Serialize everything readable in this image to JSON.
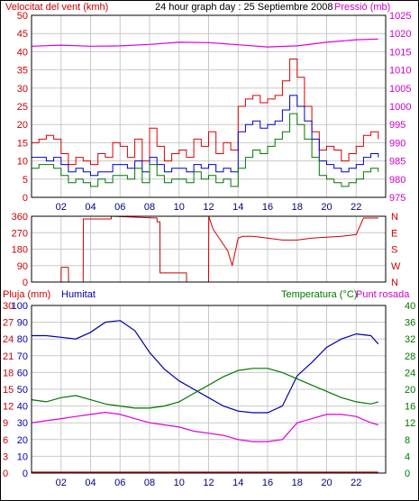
{
  "header": {
    "wind_label": "Velocitat del vent (kmh)",
    "title": "24 hour graph day : 25 Septiembre 2008",
    "pressure_label": "Pressió (mb)"
  },
  "x_ticks": [
    "02",
    "04",
    "06",
    "08",
    "10",
    "12",
    "14",
    "16",
    "18",
    "20",
    "22"
  ],
  "colors": {
    "wind_red": "#dd0000",
    "wind_blue": "#0000cc",
    "wind_green": "#007700",
    "pressure": "#dd00dd",
    "direction": "#cc0000",
    "humidity": "#0000aa",
    "temperature": "#007700",
    "dewpoint": "#dd00dd",
    "rain": "#cc0000",
    "grid": "#c8c8c8",
    "frame": "#000000"
  },
  "panel3": {
    "rain_label": "Pluja (mm)",
    "humidity_label": "Humitat",
    "temp_label": "Temperatura (°C)",
    "dew_label": "Punt rosada"
  },
  "chart_data": [
    {
      "type": "line",
      "title": "24 hour graph day : 25 Septiembre 2008",
      "x_unit": "hour",
      "x_ticks": [
        "02",
        "04",
        "06",
        "08",
        "10",
        "12",
        "14",
        "16",
        "18",
        "20",
        "22"
      ],
      "y_left": {
        "label": "Velocitat del vent (kmh)",
        "ticks": [
          0,
          5,
          10,
          15,
          20,
          25,
          30,
          35,
          40,
          45,
          50
        ],
        "range": [
          0,
          50
        ]
      },
      "y_right": {
        "label": "Pressió (mb)",
        "ticks": [
          975,
          980,
          985,
          990,
          995,
          1000,
          1005,
          1010,
          1015,
          1020,
          1025
        ],
        "range": [
          975,
          1025
        ]
      },
      "series": [
        {
          "axis": "left",
          "color_key": "wind_red",
          "x": [
            0,
            0.5,
            1,
            1.5,
            2,
            2.5,
            3,
            3.5,
            4,
            4.5,
            5,
            5.5,
            6,
            6.5,
            7,
            7.5,
            8,
            8.5,
            9,
            9.5,
            10,
            10.5,
            11,
            11.5,
            12,
            12.5,
            13,
            13.5,
            14,
            14.5,
            15,
            15.5,
            16,
            16.5,
            17,
            17.5,
            18,
            18.5,
            19,
            19.5,
            20,
            20.5,
            21,
            21.5,
            22,
            22.5,
            23,
            23.5
          ],
          "values": [
            15,
            16,
            17,
            16,
            12,
            9,
            11,
            10,
            9,
            12,
            11,
            15,
            14,
            11,
            16,
            10,
            19,
            14,
            10,
            12,
            13,
            11,
            16,
            14,
            18,
            12,
            15,
            13,
            25,
            27,
            28,
            26,
            27,
            28,
            32,
            38,
            33,
            25,
            18,
            13,
            14,
            13,
            10,
            12,
            14,
            17,
            18,
            16
          ]
        },
        {
          "axis": "left",
          "color_key": "wind_blue",
          "x": [
            0,
            0.5,
            1,
            1.5,
            2,
            2.5,
            3,
            3.5,
            4,
            4.5,
            5,
            5.5,
            6,
            6.5,
            7,
            7.5,
            8,
            8.5,
            9,
            9.5,
            10,
            10.5,
            11,
            11.5,
            12,
            12.5,
            13,
            13.5,
            14,
            14.5,
            15,
            15.5,
            16,
            16.5,
            17,
            17.5,
            18,
            18.5,
            19,
            19.5,
            20,
            20.5,
            21,
            21.5,
            22,
            22.5,
            23,
            23.5
          ],
          "values": [
            11,
            11,
            10,
            11,
            9,
            7,
            8,
            7,
            6,
            7,
            7,
            9,
            9,
            8,
            10,
            7,
            11,
            9,
            7,
            8,
            8,
            7,
            9,
            8,
            9,
            7,
            8,
            7,
            18,
            20,
            21,
            19,
            20,
            21,
            24,
            28,
            25,
            21,
            16,
            10,
            9,
            8,
            7,
            8,
            9,
            11,
            12,
            11
          ]
        },
        {
          "axis": "left",
          "color_key": "wind_green",
          "x": [
            0,
            0.5,
            1,
            1.5,
            2,
            2.5,
            3,
            3.5,
            4,
            4.5,
            5,
            5.5,
            6,
            6.5,
            7,
            7.5,
            8,
            8.5,
            9,
            9.5,
            10,
            10.5,
            11,
            11.5,
            12,
            12.5,
            13,
            13.5,
            14,
            14.5,
            15,
            15.5,
            16,
            16.5,
            17,
            17.5,
            18,
            18.5,
            19,
            19.5,
            20,
            20.5,
            21,
            21.5,
            22,
            22.5,
            23,
            23.5
          ],
          "values": [
            8,
            9,
            9,
            8,
            6,
            4,
            5,
            4,
            3,
            5,
            4,
            6,
            6,
            5,
            8,
            4,
            9,
            6,
            4,
            5,
            5,
            4,
            7,
            5,
            6,
            4,
            5,
            3,
            8,
            11,
            13,
            12,
            14,
            16,
            18,
            23,
            20,
            16,
            11,
            6,
            5,
            4,
            3,
            4,
            5,
            7,
            8,
            7
          ]
        },
        {
          "name": "Pressió (mb)",
          "axis": "right",
          "color_key": "pressure",
          "x": [
            0,
            2,
            4,
            6,
            8,
            10,
            12,
            14,
            16,
            18,
            20,
            22,
            23.5
          ],
          "values": [
            1016.5,
            1016.8,
            1016.5,
            1016.6,
            1017.0,
            1017.6,
            1017.5,
            1016.9,
            1016.3,
            1016.6,
            1017.6,
            1018.3,
            1018.5
          ]
        }
      ]
    },
    {
      "type": "line",
      "title": "",
      "x_unit": "hour",
      "y_left": {
        "ticks": [
          0,
          90,
          180,
          270,
          360
        ],
        "range": [
          0,
          360
        ]
      },
      "y_right": {
        "ticks": [
          "N",
          "W",
          "S",
          "E",
          "N"
        ]
      },
      "series": [
        {
          "color_key": "direction",
          "x": [
            0,
            2.0,
            2.01,
            2.5,
            2.51,
            3.5,
            3.51,
            5.4,
            5.41,
            8.5,
            8.51,
            8.7,
            8.71,
            10.5,
            10.51,
            11.0,
            11.01,
            12.0,
            12.01,
            12.3,
            12.8,
            13.3,
            13.6,
            14.0,
            14.3,
            15.0,
            16.0,
            17.0,
            18.0,
            19.0,
            20.0,
            21.0,
            22.0,
            22.5,
            23.5
          ],
          "values": [
            0,
            0,
            80,
            80,
            0,
            0,
            345,
            345,
            360,
            350,
            330,
            330,
            50,
            50,
            0,
            0,
            0,
            0,
            360,
            290,
            230,
            170,
            90,
            240,
            250,
            250,
            240,
            230,
            230,
            240,
            245,
            250,
            260,
            350,
            350
          ]
        }
      ]
    },
    {
      "type": "line",
      "title": "",
      "x_unit": "hour",
      "y_left_rain": {
        "label": "Pluja (mm)",
        "ticks": [
          0,
          3,
          6,
          9,
          12,
          15,
          18,
          21,
          24,
          27,
          30
        ],
        "range": [
          0,
          30
        ]
      },
      "y_left_humidity": {
        "label": "Humitat",
        "ticks": [
          0,
          10,
          20,
          30,
          40,
          50,
          60,
          70,
          80,
          90,
          100
        ],
        "range": [
          0,
          100
        ]
      },
      "y_right": {
        "label": "Temperatura (°C)",
        "ticks": [
          0,
          4,
          8,
          12,
          16,
          20,
          24,
          28,
          32,
          36,
          40
        ],
        "range": [
          0,
          40
        ]
      },
      "series": [
        {
          "name": "Humitat",
          "axis": "humidity",
          "color_key": "humidity",
          "x": [
            0,
            1,
            2,
            3,
            4,
            5,
            6,
            7,
            8,
            9,
            10,
            11,
            12,
            13,
            14,
            15,
            16,
            17,
            18,
            19,
            20,
            21,
            22,
            23,
            23.5
          ],
          "values": [
            82,
            82,
            81,
            80,
            84,
            90,
            91,
            85,
            72,
            62,
            55,
            50,
            45,
            40,
            37,
            36,
            36,
            40,
            58,
            66,
            75,
            80,
            83,
            82,
            77
          ]
        },
        {
          "name": "Temperatura (°C)",
          "axis": "temperature",
          "color_key": "temperature",
          "x": [
            0,
            1,
            2,
            3,
            4,
            5,
            6,
            7,
            8,
            9,
            10,
            11,
            12,
            13,
            14,
            15,
            16,
            17,
            18,
            19,
            20,
            21,
            22,
            23,
            23.5
          ],
          "values": [
            17.5,
            17,
            18,
            18.5,
            17.5,
            16.5,
            16,
            15.5,
            15.5,
            16,
            17,
            19,
            21,
            23,
            24.5,
            25,
            25,
            24,
            22.5,
            21,
            19.5,
            18,
            17,
            16.5,
            17
          ]
        },
        {
          "name": "Punt rosada",
          "axis": "temperature",
          "color_key": "dewpoint",
          "x": [
            0,
            1,
            2,
            3,
            4,
            5,
            6,
            7,
            8,
            9,
            10,
            11,
            12,
            13,
            14,
            15,
            16,
            17,
            18,
            19,
            20,
            21,
            22,
            23,
            23.5
          ],
          "values": [
            12,
            12.5,
            13,
            13.5,
            14,
            14.5,
            14,
            13,
            12,
            11.5,
            11,
            10,
            9.5,
            9,
            8,
            7.5,
            7.5,
            8,
            12,
            13,
            14,
            14,
            13.5,
            12,
            11.5
          ]
        },
        {
          "name": "Pluja (mm)",
          "axis": "rain",
          "color_key": "rain",
          "x": [
            0,
            23.5
          ],
          "values": [
            0,
            0
          ]
        }
      ]
    }
  ]
}
